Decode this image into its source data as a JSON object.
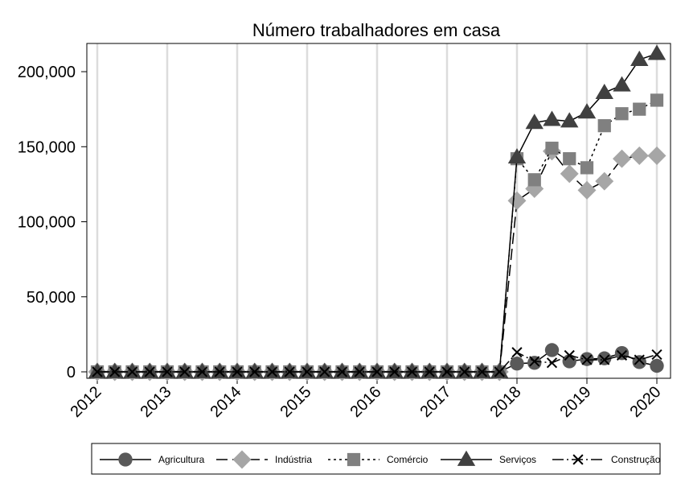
{
  "chart_data": {
    "type": "line",
    "title": "Número trabalhadores em casa",
    "xlabel": "",
    "ylabel": "",
    "xlim": [
      2012,
      2020
    ],
    "ylim": [
      0,
      210000
    ],
    "x_ticks": [
      "2012",
      "2013",
      "2014",
      "2015",
      "2016",
      "2017",
      "2018",
      "2019",
      "2020"
    ],
    "y_ticks": [
      {
        "value": 0,
        "label": "0"
      },
      {
        "value": 50000,
        "label": "50,000"
      },
      {
        "value": 100000,
        "label": "100,000"
      },
      {
        "value": 150000,
        "label": "150,000"
      },
      {
        "value": 200000,
        "label": "200,000"
      }
    ],
    "grid": "vertical",
    "legend_position": "bottom",
    "x": [
      2012,
      2012.25,
      2012.5,
      2012.75,
      2013,
      2013.25,
      2013.5,
      2013.75,
      2014,
      2014.25,
      2014.5,
      2014.75,
      2015,
      2015.25,
      2015.5,
      2015.75,
      2016,
      2016.25,
      2016.5,
      2016.75,
      2017,
      2017.25,
      2017.5,
      2017.75,
      2018,
      2018.25,
      2018.5,
      2018.75,
      2019,
      2019.25,
      2019.5,
      2019.75,
      2020
    ],
    "series": [
      {
        "name": "Agricultura",
        "marker": "circle",
        "color": "#595959",
        "dash": "",
        "values": [
          0,
          0,
          0,
          0,
          0,
          0,
          0,
          0,
          0,
          0,
          0,
          0,
          0,
          0,
          0,
          0,
          0,
          0,
          0,
          0,
          0,
          0,
          0,
          0,
          5500,
          6000,
          14500,
          7000,
          8500,
          9000,
          12500,
          6500,
          4000
        ]
      },
      {
        "name": "Indústria",
        "marker": "diamond",
        "color": "#a6a6a6",
        "dash": "14,6",
        "values": [
          0,
          0,
          0,
          0,
          0,
          0,
          0,
          0,
          0,
          0,
          0,
          0,
          0,
          0,
          0,
          0,
          0,
          0,
          0,
          0,
          0,
          0,
          0,
          0,
          114000,
          122000,
          147000,
          132000,
          121000,
          127000,
          142000,
          144000,
          144000
        ]
      },
      {
        "name": "Comércio",
        "marker": "square",
        "color": "#808080",
        "dash": "3,4",
        "values": [
          0,
          0,
          0,
          0,
          0,
          0,
          0,
          0,
          0,
          0,
          0,
          0,
          0,
          0,
          0,
          0,
          0,
          0,
          0,
          0,
          0,
          0,
          0,
          0,
          142000,
          128000,
          149000,
          142000,
          136000,
          164000,
          172000,
          175000,
          181000
        ]
      },
      {
        "name": "Serviços",
        "marker": "triangle",
        "color": "#404040",
        "dash": "",
        "values": [
          0,
          0,
          0,
          0,
          0,
          0,
          0,
          0,
          0,
          0,
          0,
          0,
          0,
          0,
          0,
          0,
          0,
          0,
          0,
          0,
          0,
          0,
          0,
          0,
          143000,
          166000,
          168000,
          167000,
          173000,
          186000,
          191000,
          208000,
          212000
        ]
      },
      {
        "name": "Construção",
        "marker": "x",
        "color": "#000000",
        "dash": "14,4,2,4",
        "values": [
          0,
          0,
          0,
          0,
          0,
          0,
          0,
          0,
          0,
          0,
          0,
          0,
          0,
          0,
          0,
          0,
          0,
          0,
          0,
          0,
          0,
          0,
          0,
          0,
          13000,
          7000,
          6000,
          11000,
          8000,
          8000,
          11000,
          8000,
          11500
        ]
      }
    ]
  }
}
